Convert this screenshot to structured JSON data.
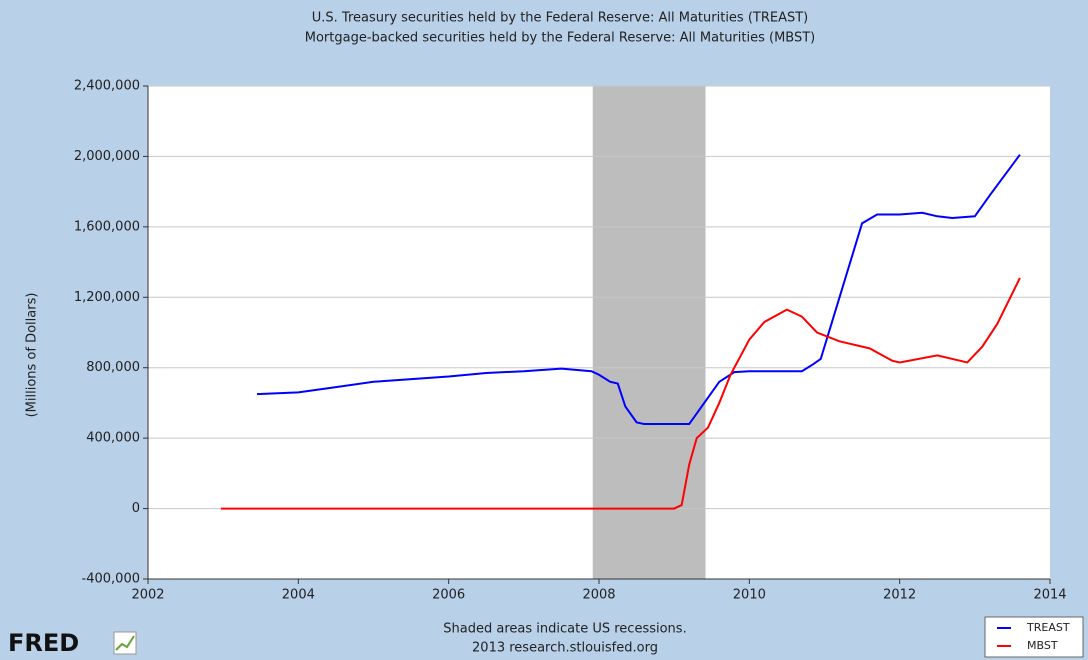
{
  "chart_data": {
    "type": "line",
    "title": [
      "U.S. Treasury securities held by the Federal Reserve: All Maturities (TREAST)",
      "Mortgage-backed securities held by the Federal Reserve: All Maturities (MBST)"
    ],
    "ylabel": "(Millions of Dollars)",
    "notes": [
      "Shaded areas indicate US recessions.",
      "2013 research.stlouisfed.org"
    ],
    "logo": "FRED",
    "xlim": [
      2002,
      2014
    ],
    "xticks": [
      2002,
      2004,
      2006,
      2008,
      2010,
      2012,
      2014
    ],
    "ylim": [
      -400000,
      2400000
    ],
    "yticks": [
      {
        "value": -400000,
        "label": "-400,000"
      },
      0,
      {
        "value": 400000,
        "label": "400,000"
      },
      {
        "value": 800000,
        "label": "800,000"
      },
      {
        "value": 1200000,
        "label": "1,200,000"
      },
      {
        "value": 1600000,
        "label": "1,600,000"
      },
      {
        "value": 2000000,
        "label": "2,000,000"
      },
      {
        "value": 2400000,
        "label": "2,400,000"
      }
    ],
    "grid": true,
    "recessions": [
      [
        2007.917,
        2009.417
      ]
    ],
    "recession_color": "#bdbdbd",
    "legend": "lower right",
    "series": [
      {
        "name": "TREAST",
        "color": "#0000ff",
        "x": [
          2003.45,
          2004.0,
          2004.5,
          2005.0,
          2006.0,
          2006.5,
          2007.0,
          2007.5,
          2007.9,
          2008.0,
          2008.15,
          2008.25,
          2008.35,
          2008.5,
          2008.6,
          2009.2,
          2009.4,
          2009.6,
          2009.8,
          2010.0,
          2010.7,
          2010.85,
          2010.95,
          2011.2,
          2011.5,
          2011.7,
          2012.0,
          2012.3,
          2012.5,
          2012.7,
          2013.0,
          2013.2,
          2013.6
        ],
        "values": [
          650000,
          660000,
          690000,
          720000,
          750000,
          770000,
          780000,
          795000,
          780000,
          760000,
          720000,
          710000,
          580000,
          490000,
          480000,
          480000,
          600000,
          720000,
          775000,
          780000,
          780000,
          820000,
          850000,
          1200000,
          1620000,
          1670000,
          1670000,
          1680000,
          1660000,
          1650000,
          1660000,
          1780000,
          2010000
        ]
      },
      {
        "name": "MBST",
        "color": "#ff0000",
        "x": [
          2002.97,
          2009.0,
          2009.1,
          2009.2,
          2009.3,
          2009.45,
          2009.6,
          2009.75,
          2010.0,
          2010.2,
          2010.5,
          2010.7,
          2010.9,
          2011.2,
          2011.6,
          2011.9,
          2012.0,
          2012.5,
          2012.9,
          2013.1,
          2013.3,
          2013.6
        ],
        "values": [
          0,
          0,
          20000,
          250000,
          400000,
          460000,
          600000,
          760000,
          960000,
          1060000,
          1130000,
          1090000,
          1000000,
          950000,
          910000,
          840000,
          830000,
          870000,
          830000,
          920000,
          1050000,
          1310000
        ]
      }
    ]
  }
}
